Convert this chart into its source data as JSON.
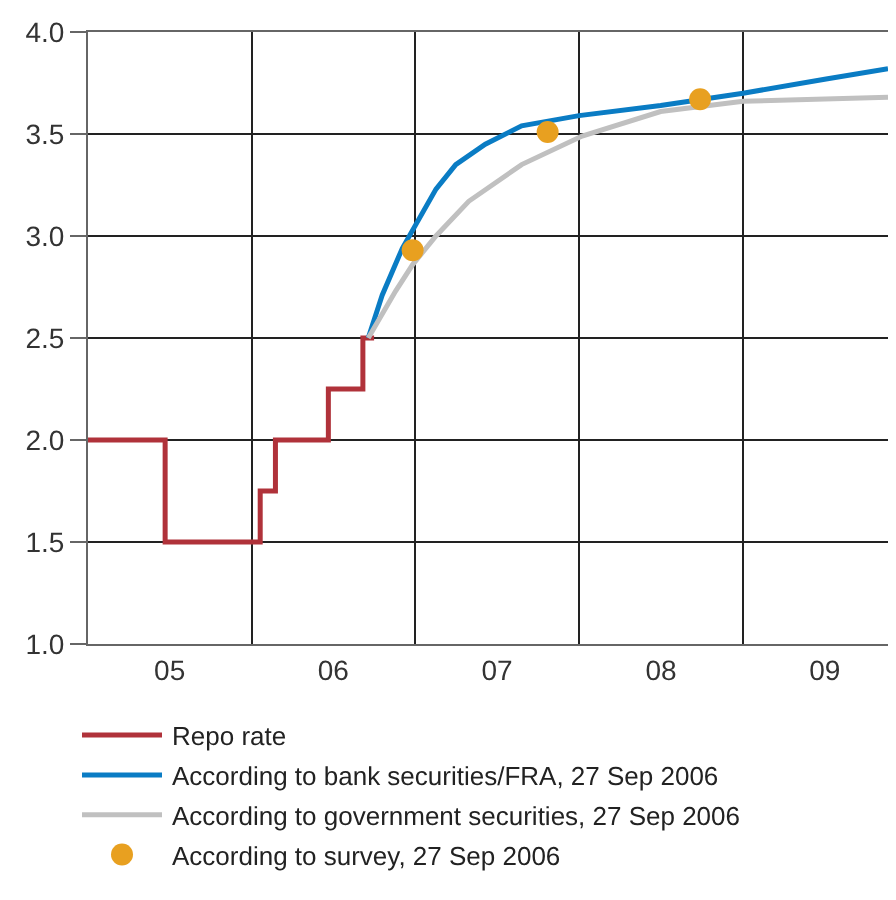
{
  "chart_data": {
    "type": "line",
    "xlim": [
      "2005-01-01",
      "2009-11-20"
    ],
    "ylim": [
      1.0,
      4.0
    ],
    "xticks": [
      {
        "value": "2005-07-02",
        "label": "05"
      },
      {
        "value": "2006-07-02",
        "label": "06"
      },
      {
        "value": "2007-07-02",
        "label": "07"
      },
      {
        "value": "2008-07-02",
        "label": "08"
      },
      {
        "value": "2009-07-02",
        "label": "09"
      },
      {
        "value": "2006-01-01",
        "label": null
      },
      {
        "value": "2007-01-01",
        "label": null
      },
      {
        "value": "2008-01-01",
        "label": null
      },
      {
        "value": "2009-01-01",
        "label": null
      }
    ],
    "yticks": [
      {
        "value": 1.0,
        "label": "1.0"
      },
      {
        "value": 1.5,
        "label": "1.5"
      },
      {
        "value": 2.0,
        "label": "2.0"
      },
      {
        "value": 2.5,
        "label": "2.5"
      },
      {
        "value": 3.0,
        "label": "3.0"
      },
      {
        "value": 3.5,
        "label": "3.5"
      },
      {
        "value": 4.0,
        "label": "4.0"
      }
    ],
    "grid": true,
    "legend": "bottom",
    "series": [
      {
        "name": "Repo rate",
        "type": "step",
        "color": "#b0323a",
        "x": [
          "2005-01-01",
          "2005-06-22",
          "2006-01-20",
          "2006-02-23",
          "2006-06-21",
          "2006-09-06",
          "2006-10-01"
        ],
        "values": [
          2.0,
          1.5,
          1.75,
          2.0,
          2.25,
          2.5,
          2.5
        ]
      },
      {
        "name": "According to bank securities/FRA, 27 Sep 2006",
        "color": "#0a7cc4",
        "x": [
          "2006-09-18",
          "2006-10-19",
          "2006-12-03",
          "2007-02-16",
          "2007-04-01",
          "2007-06-06",
          "2007-08-26",
          "2008-01-01",
          "2008-07-01",
          "2009-01-01",
          "2009-07-05",
          "2009-11-20"
        ],
        "values": [
          2.5,
          2.71,
          2.94,
          3.23,
          3.35,
          3.45,
          3.54,
          3.59,
          3.64,
          3.7,
          3.77,
          3.82
        ]
      },
      {
        "name": "According to government securities, 27 Sep 2006",
        "color": "#c0c0c0",
        "x": [
          "2006-09-18",
          "2006-11-18",
          "2006-12-26",
          "2007-02-16",
          "2007-04-30",
          "2007-08-26",
          "2008-01-08",
          "2008-07-01",
          "2009-01-01",
          "2009-11-20"
        ],
        "values": [
          2.5,
          2.73,
          2.86,
          3.0,
          3.17,
          3.35,
          3.49,
          3.61,
          3.66,
          3.68
        ]
      },
      {
        "name": "According to survey, 27 Sep 2006",
        "type": "scatter",
        "marker": "circle",
        "color": "#e8a020",
        "x": [
          "2006-12-26",
          "2007-10-23",
          "2008-09-27"
        ],
        "values": [
          2.93,
          3.51,
          3.67
        ]
      }
    ]
  }
}
